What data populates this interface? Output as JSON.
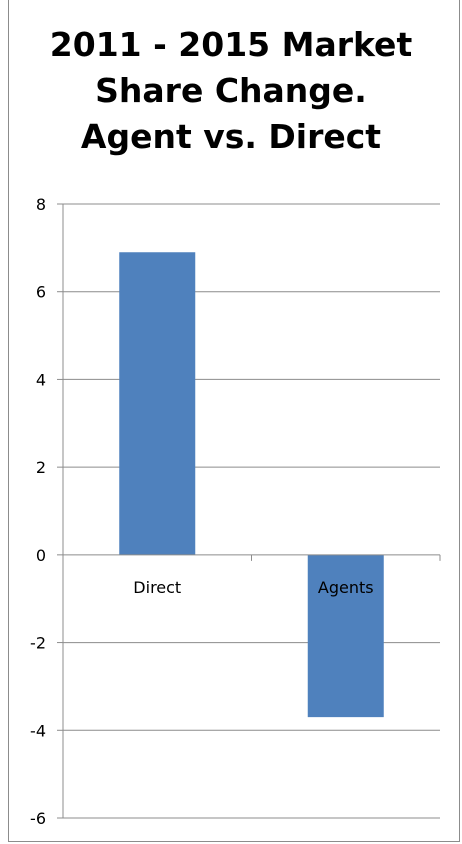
{
  "chart_data": {
    "type": "bar",
    "title": [
      "2011 - 2015 Market",
      "Share Change.",
      "Agent vs. Direct"
    ],
    "categories": [
      "Direct",
      "Agents"
    ],
    "series": [
      {
        "values": [
          6.9,
          -3.7
        ],
        "color": "#4f81bd"
      }
    ],
    "ylim": [
      -6,
      8
    ],
    "yticks": [
      8,
      6,
      4,
      2,
      0,
      -2,
      -4,
      -6
    ],
    "grid": true,
    "legend": "none"
  }
}
